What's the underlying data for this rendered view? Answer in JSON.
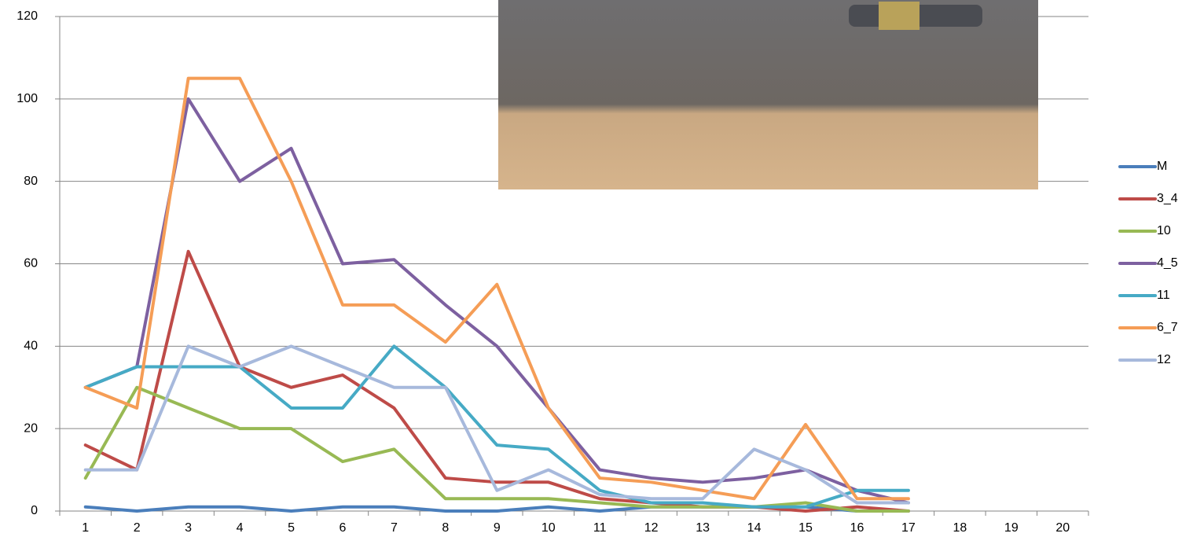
{
  "chart_data": {
    "type": "line",
    "categories": [
      "1",
      "2",
      "3",
      "4",
      "5",
      "6",
      "7",
      "8",
      "9",
      "10",
      "11",
      "12",
      "13",
      "14",
      "15",
      "16",
      "17",
      "18",
      "19",
      "20"
    ],
    "series": [
      {
        "name": "M",
        "color": "#4a7ebb",
        "values": [
          1,
          0,
          1,
          1,
          0,
          1,
          1,
          0,
          0,
          1,
          0,
          1,
          1,
          1,
          1,
          0,
          0,
          null,
          null,
          null
        ]
      },
      {
        "name": "3_4",
        "color": "#be4b48",
        "values": [
          16,
          10,
          63,
          35,
          30,
          33,
          25,
          8,
          7,
          7,
          3,
          2,
          1,
          1,
          0,
          1,
          0,
          null,
          null,
          null
        ]
      },
      {
        "name": "10",
        "color": "#98b954",
        "values": [
          8,
          30,
          25,
          20,
          20,
          12,
          15,
          3,
          3,
          3,
          2,
          1,
          1,
          1,
          2,
          0,
          0,
          null,
          null,
          null
        ]
      },
      {
        "name": "4_5",
        "color": "#7d60a0",
        "values": [
          30,
          35,
          100,
          80,
          88,
          60,
          61,
          50,
          40,
          25,
          10,
          8,
          7,
          8,
          10,
          5,
          2,
          null,
          null,
          null
        ]
      },
      {
        "name": "11",
        "color": "#46aac5",
        "values": [
          30,
          35,
          35,
          35,
          25,
          25,
          40,
          30,
          16,
          15,
          5,
          2,
          2,
          1,
          1,
          5,
          5,
          null,
          null,
          null
        ]
      },
      {
        "name": "6_7",
        "color": "#f59d56",
        "values": [
          30,
          25,
          105,
          105,
          80,
          50,
          50,
          41,
          55,
          25,
          8,
          7,
          5,
          3,
          21,
          3,
          3,
          null,
          null,
          null
        ]
      },
      {
        "name": "12",
        "color": "#a7b9dc",
        "values": [
          10,
          10,
          40,
          35,
          40,
          35,
          30,
          30,
          5,
          10,
          4,
          3,
          3,
          15,
          10,
          2,
          2,
          null,
          null,
          null
        ]
      }
    ],
    "ylim": [
      0,
      120
    ],
    "yticks": [
      0,
      20,
      40,
      60,
      80,
      100,
      120
    ],
    "grid": true,
    "legend": "right"
  }
}
